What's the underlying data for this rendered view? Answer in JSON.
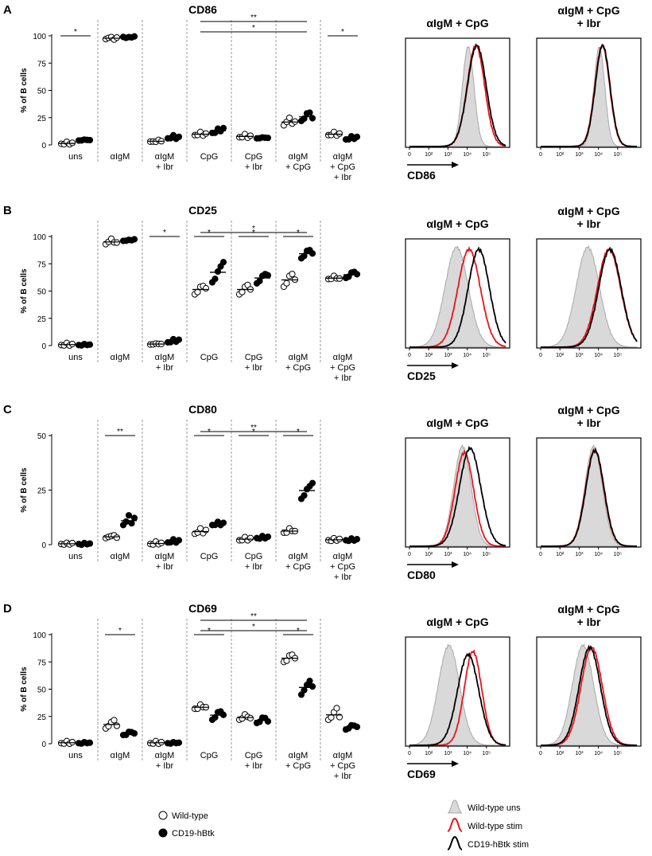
{
  "figure": {
    "legend": {
      "wild_type": "Wild-type",
      "hbtk": "CD19-hBtk",
      "hist_uns": "Wild-type uns",
      "hist_wt": "Wild-type stim",
      "hist_hbtk": "CD19-hBtk stim"
    },
    "colors": {
      "wt": "#ffffff",
      "hbtk": "#000000",
      "stim_wt": "#e8141b",
      "stim_hbtk": "#000000",
      "uns_fill": "#d9d9d9",
      "uns_line": "#a8a8a8"
    }
  },
  "chart_data": [
    {
      "type": "scatter",
      "panel": "A",
      "title": "CD86",
      "ylabel": "% of B cells",
      "ylim": [
        0,
        100
      ],
      "yticks": [
        "0",
        "25",
        "50",
        "75",
        "100"
      ],
      "groups": [
        "uns",
        "αIgM",
        "αIgM + Ibr",
        "CpG",
        "CpG + Ibr",
        "αIgM + CpG",
        "αIgM + CpG + Ibr"
      ],
      "group_label_lines": [
        [
          "uns"
        ],
        [
          "αIgM"
        ],
        [
          "αIgM",
          "+ Ibr"
        ],
        [
          "CpG"
        ],
        [
          "CpG",
          "+ Ibr"
        ],
        [
          "αIgM",
          "+ CpG"
        ],
        [
          "αIgM",
          "+ CpG",
          "+ Ibr"
        ]
      ],
      "series": [
        {
          "name": "Wild-type",
          "values": [
            [
              1,
              1.5,
              2,
              1,
              1.5
            ],
            [
              97,
              99,
              98,
              97,
              98
            ],
            [
              3,
              4,
              2,
              5,
              3
            ],
            [
              9,
              10,
              11,
              9,
              10
            ],
            [
              7,
              8,
              9,
              7,
              8
            ],
            [
              18,
              22,
              24,
              20,
              21
            ],
            [
              9,
              10,
              11,
              9,
              10
            ]
          ]
        },
        {
          "name": "CD19-hBtk",
          "values": [
            [
              4,
              5,
              4,
              5,
              4
            ],
            [
              99,
              99,
              98,
              99,
              99
            ],
            [
              6,
              7,
              8,
              6,
              7
            ],
            [
              11,
              12,
              14,
              13,
              15
            ],
            [
              6,
              7,
              6,
              7,
              6
            ],
            [
              22,
              25,
              28,
              30,
              24
            ],
            [
              5,
              6,
              7,
              6,
              7
            ]
          ]
        }
      ],
      "sig": [
        {
          "from": 0,
          "to": 0,
          "label": "*"
        },
        {
          "from": 6,
          "to": 6,
          "label": "*"
        },
        {
          "from": 3,
          "to": 5,
          "label": "*"
        },
        {
          "from": 3,
          "to": 5,
          "label": "**"
        }
      ],
      "histograms": [
        {
          "title": [
            "αIgM + CpG"
          ],
          "uns": [
            3.05,
            0.3
          ],
          "wt": [
            3.45,
            0.45
          ],
          "hbtk": [
            3.5,
            0.48
          ],
          "wt_peak": 0.95,
          "hbtk_peak": 0.95
        },
        {
          "title": [
            "αIgM + CpG",
            "+ Ibr"
          ],
          "uns": [
            3.05,
            0.28
          ],
          "wt": [
            3.2,
            0.38
          ],
          "hbtk": [
            3.22,
            0.38
          ],
          "wt_peak": 0.95,
          "hbtk_peak": 0.95
        }
      ],
      "hist_marker": "CD86",
      "hist_ticks": [
        "0",
        "10²",
        "10³",
        "10⁴",
        "10⁵"
      ]
    },
    {
      "type": "scatter",
      "panel": "B",
      "title": "CD25",
      "ylabel": "% of B cells",
      "ylim": [
        0,
        100
      ],
      "yticks": [
        "0",
        "25",
        "50",
        "75",
        "100"
      ],
      "groups": [
        "uns",
        "αIgM",
        "αIgM + Ibr",
        "CpG",
        "CpG + Ibr",
        "αIgM + CpG",
        "αIgM + CpG + Ibr"
      ],
      "group_label_lines": [
        [
          "uns"
        ],
        [
          "αIgM"
        ],
        [
          "αIgM",
          "+ Ibr"
        ],
        [
          "CpG"
        ],
        [
          "CpG",
          "+ Ibr"
        ],
        [
          "αIgM",
          "+ CpG"
        ],
        [
          "αIgM",
          "+ CpG",
          "+ Ibr"
        ]
      ],
      "series": [
        {
          "name": "Wild-type",
          "values": [
            [
              0.5,
              1,
              1.5,
              0.5,
              1
            ],
            [
              93,
              96,
              97,
              95,
              94
            ],
            [
              1,
              2,
              1,
              2,
              1
            ],
            [
              47,
              50,
              53,
              55,
              52
            ],
            [
              47,
              50,
              53,
              56,
              51
            ],
            [
              54,
              58,
              63,
              66,
              60
            ],
            [
              61,
              62,
              63,
              62,
              61
            ]
          ]
        },
        {
          "name": "CD19-hBtk",
          "values": [
            [
              0.5,
              1,
              0.5,
              1,
              0.5
            ],
            [
              96,
              97,
              96,
              97,
              97
            ],
            [
              3,
              4,
              5,
              4,
              5
            ],
            [
              58,
              62,
              67,
              73,
              76
            ],
            [
              57,
              60,
              63,
              66,
              64
            ],
            [
              80,
              83,
              86,
              88,
              84
            ],
            [
              62,
              64,
              66,
              68,
              65
            ]
          ]
        }
      ],
      "sig": [
        {
          "from": 2,
          "to": 2,
          "label": "*"
        },
        {
          "from": 3,
          "to": 3,
          "label": "*"
        },
        {
          "from": 4,
          "to": 4,
          "label": "*"
        },
        {
          "from": 5,
          "to": 5,
          "label": "*"
        },
        {
          "from": 3,
          "to": 5,
          "label": "*"
        }
      ],
      "histograms": [
        {
          "title": [
            "αIgM + CpG"
          ],
          "uns": [
            2.45,
            0.6
          ],
          "wt": [
            3.1,
            0.58
          ],
          "hbtk": [
            3.6,
            0.55
          ],
          "wt_peak": 0.92,
          "hbtk_peak": 0.92
        },
        {
          "title": [
            "αIgM + CpG",
            "+ Ibr"
          ],
          "uns": [
            2.45,
            0.6
          ],
          "wt": [
            3.55,
            0.6
          ],
          "hbtk": [
            3.6,
            0.58
          ],
          "wt_peak": 0.92,
          "hbtk_peak": 0.92
        }
      ],
      "hist_marker": "CD25",
      "hist_ticks": [
        "0",
        "10²",
        "10³",
        "10⁴",
        "10⁵"
      ]
    },
    {
      "type": "scatter",
      "panel": "C",
      "title": "CD80",
      "ylabel": "% of B cells",
      "ylim": [
        0,
        50
      ],
      "yticks": [
        "0",
        "25",
        "50"
      ],
      "groups": [
        "uns",
        "αIgM",
        "αIgM + Ibr",
        "CpG",
        "CpG + Ibr",
        "αIgM + CpG",
        "αIgM + CpG + Ibr"
      ],
      "group_label_lines": [
        [
          "uns"
        ],
        [
          "αIgM"
        ],
        [
          "αIgM",
          "+ Ibr"
        ],
        [
          "CpG"
        ],
        [
          "CpG",
          "+ Ibr"
        ],
        [
          "αIgM",
          "+ CpG"
        ],
        [
          "αIgM",
          "+ CpG",
          "+ Ibr"
        ]
      ],
      "series": [
        {
          "name": "Wild-type",
          "values": [
            [
              0.3,
              0.5,
              0.4,
              0.3,
              0.5
            ],
            [
              3,
              4,
              3.5,
              4.5,
              3
            ],
            [
              0.3,
              0.5,
              1,
              0.4,
              0.6
            ],
            [
              5,
              6,
              7,
              5.5,
              6.5
            ],
            [
              2,
              2.5,
              3,
              2.2,
              2.8
            ],
            [
              5.5,
              6,
              7,
              6.5,
              6
            ],
            [
              2,
              2.2,
              2.5,
              2.1,
              2.4
            ]
          ]
        },
        {
          "name": "CD19-hBtk",
          "values": [
            [
              0.3,
              0.4,
              0.3,
              0.4,
              0.3
            ],
            [
              9,
              11,
              13,
              10,
              12
            ],
            [
              1,
              1.5,
              2,
              1.2,
              1.8
            ],
            [
              9,
              9.5,
              10,
              9.2,
              9.8
            ],
            [
              3,
              3.2,
              3.5,
              3.1,
              3.4
            ],
            [
              21,
              23,
              25,
              27,
              28
            ],
            [
              2,
              2.2,
              2.4,
              2.1,
              2.3
            ]
          ]
        }
      ],
      "sig": [
        {
          "from": 1,
          "to": 1,
          "label": "**"
        },
        {
          "from": 3,
          "to": 3,
          "label": "*"
        },
        {
          "from": 4,
          "to": 4,
          "label": "*"
        },
        {
          "from": 5,
          "to": 5,
          "label": "*"
        },
        {
          "from": 3,
          "to": 5,
          "label": "**"
        }
      ],
      "histograms": [
        {
          "title": [
            "αIgM + CpG"
          ],
          "uns": [
            2.75,
            0.45
          ],
          "wt": [
            2.85,
            0.48
          ],
          "hbtk": [
            3.15,
            0.55
          ],
          "wt_peak": 0.88,
          "hbtk_peak": 0.92
        },
        {
          "title": [
            "αIgM + CpG",
            "+ Ibr"
          ],
          "uns": [
            2.75,
            0.45
          ],
          "wt": [
            2.8,
            0.47
          ],
          "hbtk": [
            2.82,
            0.47
          ],
          "wt_peak": 0.9,
          "hbtk_peak": 0.9
        }
      ],
      "hist_marker": "CD80",
      "hist_ticks": [
        "0",
        "10²",
        "10³",
        "10⁴",
        "10⁵"
      ]
    },
    {
      "type": "scatter",
      "panel": "D",
      "title": "CD69",
      "ylabel": "% of B cells",
      "ylim": [
        0,
        100
      ],
      "yticks": [
        "0",
        "25",
        "50",
        "75",
        "100"
      ],
      "groups": [
        "uns",
        "αIgM",
        "αIgM + Ibr",
        "CpG",
        "CpG + Ibr",
        "αIgM + CpG",
        "αIgM + CpG + Ibr"
      ],
      "group_label_lines": [
        [
          "uns"
        ],
        [
          "αIgM"
        ],
        [
          "αIgM",
          "+ Ibr"
        ],
        [
          "CpG"
        ],
        [
          "CpG",
          "+ Ibr"
        ],
        [
          "αIgM",
          "+ CpG"
        ],
        [
          "αIgM",
          "+ CpG",
          "+ Ibr"
        ]
      ],
      "series": [
        {
          "name": "Wild-type",
          "values": [
            [
              0.5,
              1,
              1.5,
              0.5,
              1
            ],
            [
              14,
              17,
              19,
              22,
              16
            ],
            [
              0.5,
              1,
              1.5,
              0.5,
              1
            ],
            [
              32,
              33,
              35,
              34,
              33
            ],
            [
              22,
              24,
              26,
              25,
              23
            ],
            [
              75,
              77,
              80,
              82,
              78
            ],
            [
              22,
              25,
              28,
              33,
              24
            ]
          ]
        },
        {
          "name": "CD19-hBtk",
          "values": [
            [
              0.5,
              1,
              0.5,
              1,
              0.5
            ],
            [
              8,
              9,
              10,
              11,
              9
            ],
            [
              0.5,
              1,
              0.5,
              1,
              0.5
            ],
            [
              22,
              25,
              28,
              30,
              26
            ],
            [
              19,
              21,
              23,
              24,
              20
            ],
            [
              45,
              50,
              53,
              58,
              52
            ],
            [
              13,
              15,
              16,
              17,
              15
            ]
          ]
        }
      ],
      "sig": [
        {
          "from": 1,
          "to": 1,
          "label": "*"
        },
        {
          "from": 3,
          "to": 3,
          "label": "*"
        },
        {
          "from": 5,
          "to": 5,
          "label": "*"
        },
        {
          "from": 3,
          "to": 5,
          "label": "*"
        },
        {
          "from": 3,
          "to": 5,
          "label": "**"
        }
      ],
      "histograms": [
        {
          "title": [
            "αIgM + CpG"
          ],
          "uns": [
            2.05,
            0.55
          ],
          "wt": [
            3.3,
            0.45
          ],
          "hbtk": [
            3.05,
            0.55
          ],
          "wt_peak": 0.88,
          "hbtk_peak": 0.85
        },
        {
          "title": [
            "αIgM + CpG",
            "+ Ibr"
          ],
          "uns": [
            2.2,
            0.55
          ],
          "wt": [
            2.65,
            0.55
          ],
          "hbtk": [
            2.55,
            0.55
          ],
          "wt_peak": 0.92,
          "hbtk_peak": 0.92
        }
      ],
      "hist_marker": "CD69",
      "hist_ticks": [
        "0",
        "10²",
        "10³",
        "10⁴",
        "10⁵"
      ]
    }
  ]
}
